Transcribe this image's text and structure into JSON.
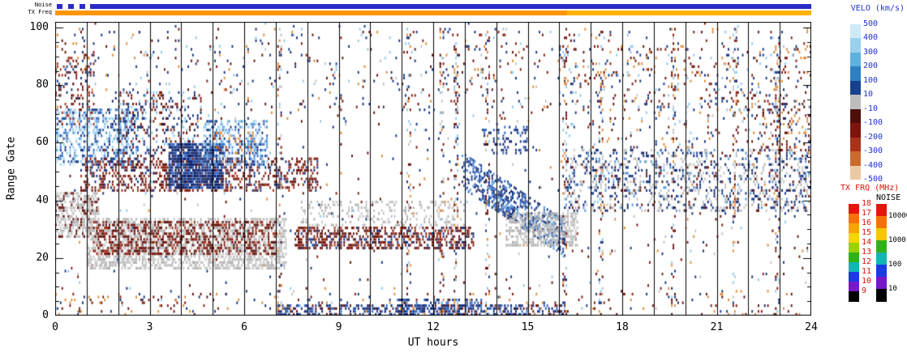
{
  "header_bars": {
    "noise_label": "Noise",
    "txfreq_label": "TX Freq",
    "noise_segments": [
      [
        0.05,
        0.22,
        "#2B2BC8"
      ],
      [
        0.42,
        0.6,
        "#2B2BC8"
      ],
      [
        0.78,
        0.96,
        "#2B2BC8"
      ],
      [
        1.1,
        24,
        "#2B2BC8"
      ]
    ],
    "txfreq_segments": [
      [
        0,
        16.25,
        "#FF9500"
      ],
      [
        16.25,
        24,
        "#FFB200"
      ]
    ]
  },
  "axes": {
    "xlabel": "UT hours",
    "ylabel": "Range Gate",
    "x_ticks": [
      "0",
      "3",
      "6",
      "9",
      "12",
      "15",
      "18",
      "21",
      "24"
    ],
    "y_ticks": [
      "0",
      "20",
      "40",
      "60",
      "80",
      "100"
    ]
  },
  "colorbars": {
    "velo": {
      "title": "VELO (km/s)",
      "title_color": "#2233CC",
      "label_color": "#2233CC",
      "labels": [
        "500",
        "400",
        "300",
        "200",
        "100",
        "10",
        "-10",
        "-100",
        "-200",
        "-300",
        "-400",
        "-500"
      ],
      "segments": [
        "#CDEBF7",
        "#9AD1EC",
        "#5FB0DE",
        "#2F7FC2",
        "#16418F",
        "#BDBDBD",
        "#4F0E0A",
        "#7D150D",
        "#A63418",
        "#C96B2F",
        "#EBC9A2"
      ]
    },
    "txfrq": {
      "title": "TX FRQ (MHz)",
      "title_color": "#D81508",
      "label_color": "#D81508",
      "labels": [
        "18",
        "17",
        "16",
        "15",
        "14",
        "13",
        "12",
        "11",
        "10",
        "9"
      ],
      "segments": [
        "#E3170D",
        "#F5720A",
        "#F7A407",
        "#F5D40A",
        "#9CD007",
        "#2EB217",
        "#13B5B5",
        "#1A3BE0",
        "#7719C9",
        "#000000"
      ]
    },
    "noise": {
      "title": "NOISE",
      "title_color": "#000000",
      "label_color": "#000000",
      "labels": [
        "10000",
        "1000",
        "100",
        "10"
      ],
      "label_boundaries": [
        1,
        3,
        5,
        7
      ],
      "segments": [
        "#E3170D",
        "#F5720A",
        "#F7C60A",
        "#2EB217",
        "#13B5B5",
        "#1A3BE0",
        "#7719C9",
        "#000000"
      ]
    }
  },
  "chart_data": {
    "type": "heatmap",
    "title": "",
    "xlabel": "UT hours",
    "ylabel": "Range Gate",
    "xlim": [
      0,
      24
    ],
    "ylim": [
      0,
      102
    ],
    "x_ticks": [
      0,
      3,
      6,
      9,
      12,
      15,
      18,
      21,
      24
    ],
    "y_ticks": [
      0,
      20,
      40,
      60,
      80,
      100
    ],
    "hour_gridlines": true,
    "velocity_scale_km_s": [
      500,
      400,
      300,
      200,
      100,
      10,
      -10,
      -100,
      -200,
      -300,
      -400,
      -500
    ],
    "tx_frq_scale_mhz": [
      18,
      17,
      16,
      15,
      14,
      13,
      12,
      11,
      10,
      9
    ],
    "noise_scale": [
      10000,
      1000,
      100,
      10
    ],
    "seed": 1337,
    "palette": {
      "navy": "#14327F",
      "darknavy": "#0B1F66",
      "blue": "#2B62C4",
      "medblue": "#4E94D8",
      "lightblue": "#8FC8EC",
      "paleblue": "#C6E6F5",
      "gray": "#C2C2C2",
      "gray2": "#AFAFAF",
      "maroon": "#5E100B",
      "darkred": "#7E170E",
      "red2": "#9E2C14",
      "brickorange": "#C25D24",
      "orange": "#E08A35",
      "tan": "#E9C89E"
    },
    "regions": [
      {
        "name": "background-speckle",
        "h": [
          0,
          24
        ],
        "g": [
          0,
          102
        ],
        "density": 0.015,
        "colors": [
          "navy",
          "maroon",
          "navy",
          "darkred",
          "lightblue",
          "orange",
          "gray"
        ]
      },
      {
        "name": "upper-sparse",
        "h": [
          0,
          24
        ],
        "g": [
          70,
          100
        ],
        "density": 0.035,
        "colors": [
          "maroon",
          "navy",
          "darkred",
          "navy",
          "lightblue",
          "orange"
        ]
      },
      {
        "name": "topleft-maroon",
        "h": [
          0,
          1.3
        ],
        "g": [
          66,
          92
        ],
        "density": 0.2,
        "colors": [
          "maroon",
          "darkred",
          "navy",
          "red2"
        ]
      },
      {
        "name": "left-lightblue-patch",
        "h": [
          0,
          2.6
        ],
        "g": [
          52,
          72
        ],
        "density": 0.42,
        "colors": [
          "lightblue",
          "paleblue",
          "medblue",
          "lightblue",
          "navy",
          "blue"
        ]
      },
      {
        "name": "left-mix",
        "h": [
          1.8,
          4.6
        ],
        "g": [
          55,
          78
        ],
        "density": 0.2,
        "colors": [
          "navy",
          "maroon",
          "darknavy",
          "lightblue",
          "darkred"
        ]
      },
      {
        "name": "maroon-band-upper",
        "h": [
          0.8,
          8.3
        ],
        "g": [
          43,
          55
        ],
        "density": 0.38,
        "colors": [
          "maroon",
          "darkred",
          "red2",
          "maroon",
          "navy"
        ]
      },
      {
        "name": "dark-blue-blob",
        "h": [
          3.6,
          5.3
        ],
        "g": [
          44,
          60
        ],
        "density": 0.8,
        "colors": [
          "darknavy",
          "navy",
          "blue",
          "darknavy"
        ]
      },
      {
        "name": "blue-streak",
        "h": [
          4.7,
          6.7
        ],
        "g": [
          52,
          68
        ],
        "density": 0.45,
        "colors": [
          "medblue",
          "lightblue",
          "navy",
          "blue",
          "paleblue"
        ]
      },
      {
        "name": "orange-flecks",
        "h": [
          5.0,
          6.3
        ],
        "g": [
          56,
          64
        ],
        "density": 0.18,
        "colors": [
          "orange",
          "brickorange",
          "red2"
        ]
      },
      {
        "name": "gray-left-band",
        "h": [
          0,
          1.4
        ],
        "g": [
          27,
          43
        ],
        "density": 0.6,
        "colors": [
          "gray",
          "gray2",
          "gray",
          "maroon"
        ]
      },
      {
        "name": "gray-main-band",
        "h": [
          1,
          7.3
        ],
        "g": [
          16,
          34
        ],
        "density": 0.55,
        "colors": [
          "gray",
          "gray2",
          "gray"
        ]
      },
      {
        "name": "maroon-overlay-band",
        "h": [
          1.2,
          7.0
        ],
        "g": [
          21,
          33
        ],
        "density": 0.42,
        "colors": [
          "maroon",
          "darkred",
          "red2",
          "maroon"
        ]
      },
      {
        "name": "mid-maroon-band",
        "h": [
          7.6,
          13.3
        ],
        "g": [
          23,
          31
        ],
        "density": 0.5,
        "colors": [
          "maroon",
          "darkred",
          "maroon",
          "navy",
          "red2"
        ]
      },
      {
        "name": "mid-gray-patches",
        "h": [
          7.8,
          13.0
        ],
        "g": [
          31,
          40
        ],
        "density": 0.22,
        "colors": [
          "gray",
          "gray2"
        ]
      },
      {
        "name": "blue-diagonal-streak",
        "h": [
          12.9,
          16.2
        ],
        "g": [
          44,
          57
        ],
        "slope": -24,
        "density": 0.5,
        "colors": [
          "navy",
          "blue",
          "darknavy",
          "medblue"
        ]
      },
      {
        "name": "navy-cluster-14h",
        "h": [
          13.6,
          15.0
        ],
        "g": [
          56,
          66
        ],
        "density": 0.25,
        "colors": [
          "navy",
          "darknavy",
          "blue"
        ]
      },
      {
        "name": "gray-blob-15h",
        "h": [
          14.3,
          16.6
        ],
        "g": [
          24,
          36
        ],
        "density": 0.55,
        "colors": [
          "gray",
          "gray2",
          "gray"
        ]
      },
      {
        "name": "right-mixed-band",
        "h": [
          16.2,
          24
        ],
        "g": [
          36,
          58
        ],
        "density": 0.26,
        "colors": [
          "gray",
          "navy",
          "gray",
          "maroon",
          "darknavy",
          "gray2",
          "navy",
          "medblue"
        ]
      },
      {
        "name": "right-upper-scatter",
        "h": [
          16,
          24
        ],
        "g": [
          58,
          95
        ],
        "density": 0.06,
        "colors": [
          "maroon",
          "navy",
          "orange",
          "lightblue",
          "darkred"
        ]
      },
      {
        "name": "right-end-mix",
        "h": [
          22.3,
          24
        ],
        "g": [
          55,
          75
        ],
        "density": 0.14,
        "colors": [
          "maroon",
          "navy",
          "darkred",
          "orange"
        ]
      },
      {
        "name": "bottom-blue-band",
        "h": [
          7,
          16.2
        ],
        "g": [
          0,
          4
        ],
        "density": 0.45,
        "colors": [
          "navy",
          "darknavy",
          "blue",
          "maroon"
        ]
      },
      {
        "name": "bottom-dense-mid",
        "h": [
          10.8,
          13.6
        ],
        "g": [
          0,
          6
        ],
        "density": 0.4,
        "colors": [
          "navy",
          "darknavy",
          "blue"
        ]
      },
      {
        "name": "bottom-sparse",
        "h": [
          0,
          24
        ],
        "g": [
          0,
          8
        ],
        "density": 0.05,
        "colors": [
          "navy",
          "maroon",
          "orange",
          "darkred"
        ]
      }
    ],
    "stripe_columns": {
      "centers": [
        7.05,
        11.15,
        12.2,
        12.65,
        13.65,
        16.1,
        17.25,
        19.55,
        21.5,
        22.85
      ],
      "width": 0.13,
      "g": [
        0,
        100
      ],
      "density": 0.22,
      "colors": [
        "navy",
        "maroon",
        "lightblue",
        "orange",
        "gray",
        "darkred"
      ]
    }
  }
}
